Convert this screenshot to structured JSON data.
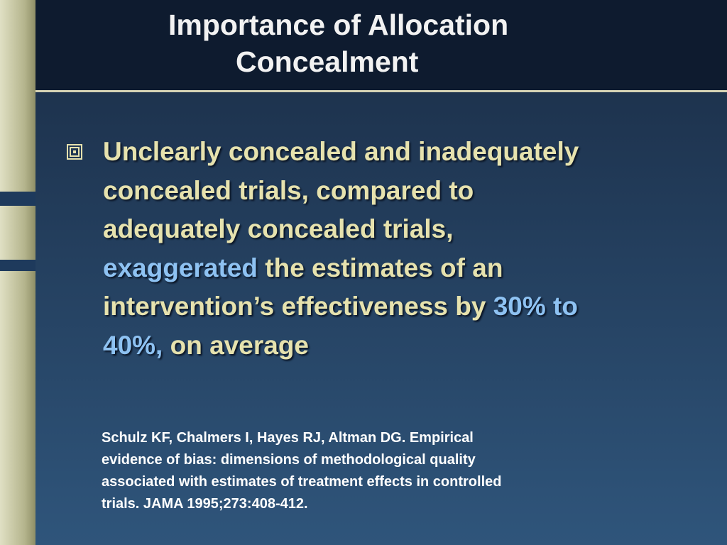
{
  "title": [
    "Importance of Allocation",
    "Concealment"
  ],
  "bullet": {
    "lines": [
      [
        {
          "text": "Unclearly concealed and inadequately"
        }
      ],
      [
        {
          "text": "concealed trials, compared to"
        }
      ],
      [
        {
          "text": "adequately concealed trials,"
        }
      ],
      [
        {
          "text": "exaggerated",
          "emphasis": true
        },
        {
          "text": " the estimates of an"
        }
      ],
      [
        {
          "text": "intervention’s effectiveness by "
        },
        {
          "text": "30% to",
          "emphasis": true
        }
      ],
      [
        {
          "text": "40%,",
          "emphasis": true
        },
        {
          "text": " on average"
        }
      ]
    ]
  },
  "reference": [
    "Schulz KF, Chalmers I, Hayes RJ, Altman DG. Empirical",
    "evidence of bias: dimensions of methodological quality",
    "associated with estimates of treatment effects in controlled",
    "trials. JAMA 1995;273:408-412."
  ]
}
